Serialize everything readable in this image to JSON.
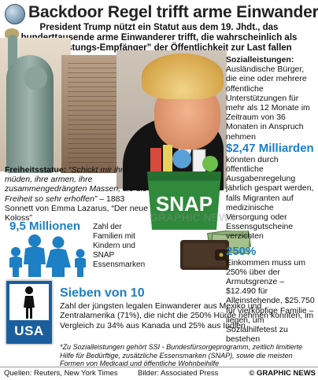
{
  "header": {
    "title": "Backdoor Regel trifft arme Einwanderer",
    "subtitle": "President Trump nützt ein Statut aus dem 19. Jhdt., das hunderttausende arme Einwanderer trifft, die wahrscheinlich als “Sozialleistungs-Empfänger” der Öffentlichkeit zur Last fallen"
  },
  "welfare": {
    "heading": "Sozialleistungen:",
    "text_before": "Ausländische Bürger, die eine oder mehrere öffentliche Unterstützungen für mehr als 12 Monate im Zeitraum von 36 Monaten in Anspruch nehmen",
    "amount": "$2,47 Milliarden",
    "text_after": "könnten durch öffentliche Ausgabenregelung jährlich gespart werden, falls Migranten auf medizinische Versorgung oder Essensgutscheine verzichten",
    "percent": "250%",
    "percent_text": "Einkommen muss um 250% über der Armutsgrenze – $12.490 für Alleinstehende, $25.750 für vierköpfige Familie – liegen, um Sozialhilfetest zu bestehen"
  },
  "statue": {
    "label": "Freiheitsstatue:",
    "quote": "“Schickt mir ihre müden, ihre armen, ihre zusammengedrängten Massen, die die Freiheit so sehr erhoffen”",
    "attribution": "– 1883 Sonnett von Emma Lazarus, “Der neue Koloss”"
  },
  "families": {
    "number": "9,5 Millionen",
    "text": "Zahl der Familien mit Kindern und SNAP Essensmarken"
  },
  "recent": {
    "number": "Sieben von 10",
    "text": "Zahl der jüngsten legalen Einwanderer aus Mexiko und Zentralamerika (71%), die nicht die 250%  Hürde nehmen konnten, im Vergleich zu 34% aus Kanada und 25% aus Indien"
  },
  "footnote": "*Zu Sozialleistungen gehört SSI - Bundesfürsorgeprogramm, zeitlich limitierte Hilfe für Bedürftige, zusätzliche Essensmarken (SNAP), sowie die meisten Formen von Medicaid und öffentliche Wohnbeihilfe",
  "footer": {
    "sources": "Quellen: Reuters, New York Times",
    "pictures": "Bilder: Associated Press",
    "copyright": "© GRAPHIC NEWS"
  },
  "graphics": {
    "snap_label": "SNAP",
    "sign_label": "USA",
    "watermark": "GRAPHIC NEWS"
  },
  "colors": {
    "accent_blue": "#1d7fc4",
    "snap_green": "#2f8a3b",
    "sign_blue": "#1b5e9e"
  }
}
